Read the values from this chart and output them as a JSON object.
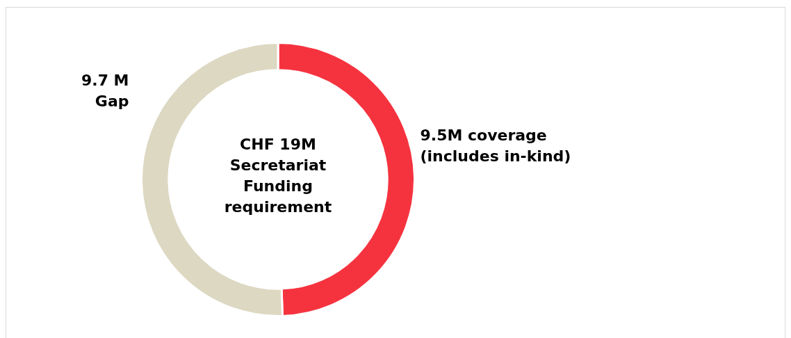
{
  "chart_data": {
    "type": "donut",
    "title": "CHF 19M Secretariat Funding requirement",
    "categories": [
      "9.5M coverage (includes in-kind)",
      "9.7 M Gap"
    ],
    "values": [
      9.5,
      9.7
    ],
    "colors": [
      "#f5333f",
      "#dcd8c2"
    ],
    "legend": false
  }
}
